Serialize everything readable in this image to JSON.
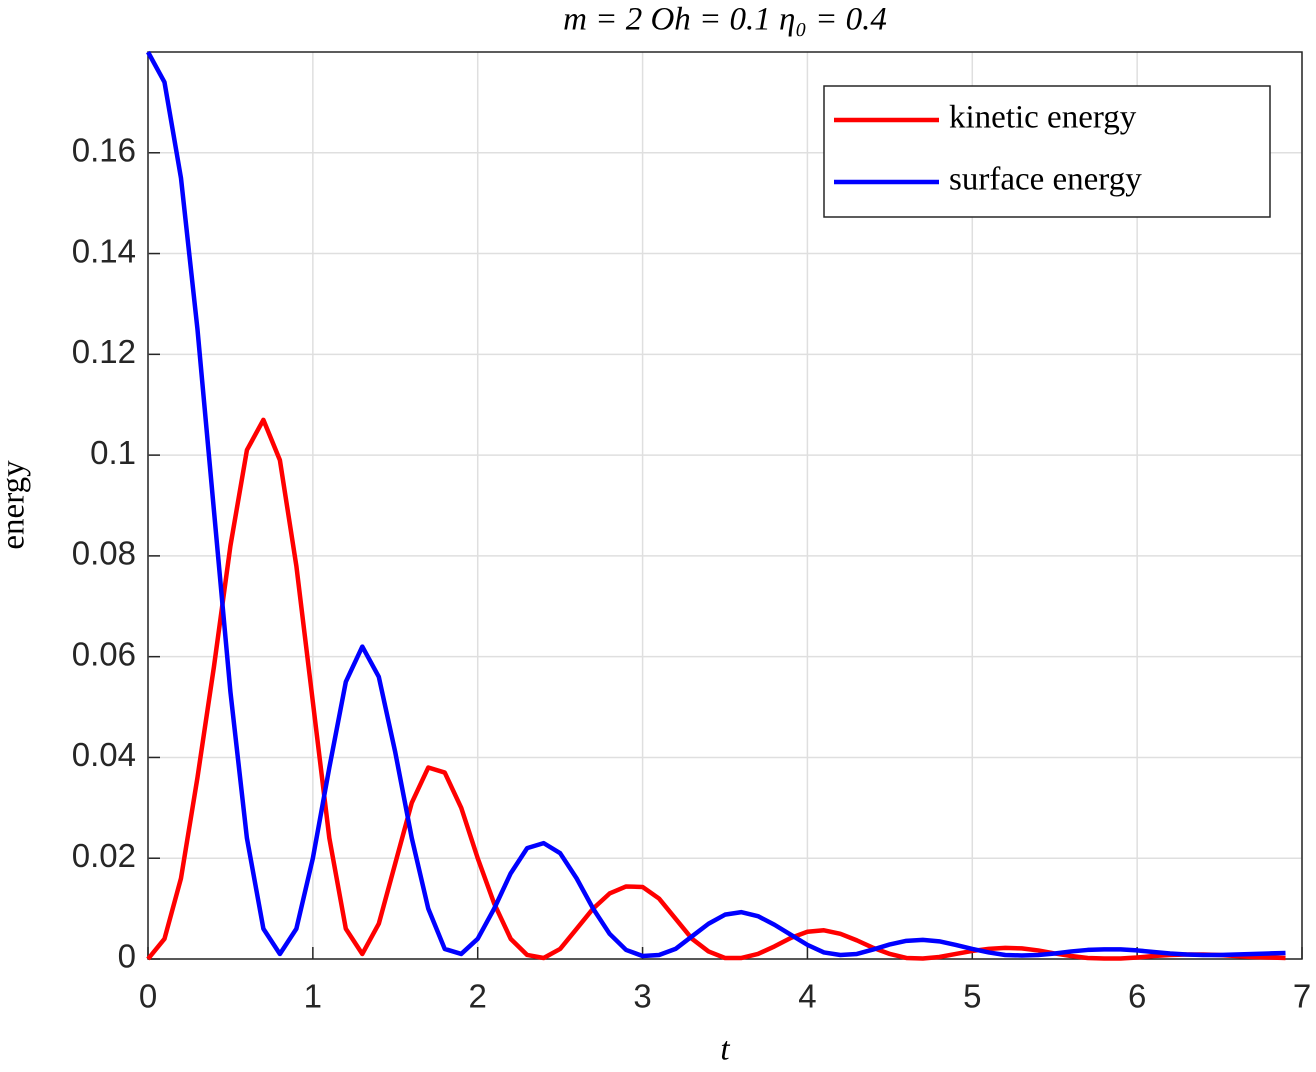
{
  "chart_data": {
    "type": "line",
    "title": "m = 2 Oh = 0.1 η₀ = 0.4",
    "xlabel": "t",
    "ylabel": "energy",
    "x": [
      0,
      0.1,
      0.2,
      0.3,
      0.4,
      0.5,
      0.6,
      0.7,
      0.8,
      0.9,
      1.0,
      1.1,
      1.2,
      1.3,
      1.4,
      1.5,
      1.6,
      1.7,
      1.8,
      1.9,
      2.0,
      2.1,
      2.2,
      2.3,
      2.4,
      2.5,
      2.6,
      2.7,
      2.8,
      2.9,
      3.0,
      3.1,
      3.2,
      3.3,
      3.4,
      3.5,
      3.6,
      3.7,
      3.8,
      3.9,
      4.0,
      4.1,
      4.2,
      4.3,
      4.4,
      4.5,
      4.6,
      4.7,
      4.8,
      4.9,
      5.0,
      5.1,
      5.2,
      5.3,
      5.4,
      5.5,
      5.6,
      5.7,
      5.8,
      5.9,
      6.0,
      6.1,
      6.2,
      6.3,
      6.4,
      6.5,
      6.6,
      6.7,
      6.8,
      6.9
    ],
    "series": [
      {
        "name": "kinetic energy",
        "color": "#ff0000",
        "values": [
          0,
          0.004,
          0.016,
          0.036,
          0.058,
          0.082,
          0.101,
          0.107,
          0.099,
          0.078,
          0.051,
          0.024,
          0.006,
          0.001,
          0.007,
          0.019,
          0.031,
          0.038,
          0.037,
          0.03,
          0.02,
          0.011,
          0.004,
          0.0008,
          0.0002,
          0.002,
          0.006,
          0.01,
          0.013,
          0.0144,
          0.0143,
          0.012,
          0.008,
          0.004,
          0.0015,
          0.0002,
          0.0002,
          0.001,
          0.0025,
          0.0042,
          0.0054,
          0.0057,
          0.005,
          0.0037,
          0.0022,
          0.001,
          0.0002,
          0.0001,
          0.0004,
          0.001,
          0.0016,
          0.002,
          0.0022,
          0.0021,
          0.0017,
          0.0011,
          0.0006,
          0.0002,
          0.0001,
          0.0001,
          0.0003,
          0.0006,
          0.0008,
          0.0009,
          0.0009,
          0.0008,
          0.0006,
          0.0004,
          0.0003,
          0.0002
        ]
      },
      {
        "name": "surface energy",
        "color": "#0000ff",
        "values": [
          0.18,
          0.174,
          0.155,
          0.125,
          0.089,
          0.053,
          0.024,
          0.006,
          0.001,
          0.006,
          0.02,
          0.038,
          0.055,
          0.062,
          0.056,
          0.041,
          0.024,
          0.01,
          0.002,
          0.001,
          0.004,
          0.01,
          0.017,
          0.022,
          0.023,
          0.021,
          0.016,
          0.01,
          0.005,
          0.0018,
          0.0006,
          0.0008,
          0.002,
          0.0045,
          0.007,
          0.0088,
          0.0093,
          0.0085,
          0.0068,
          0.0048,
          0.0028,
          0.0013,
          0.0008,
          0.001,
          0.0019,
          0.0029,
          0.0036,
          0.0038,
          0.0035,
          0.0028,
          0.002,
          0.0013,
          0.0008,
          0.0007,
          0.0008,
          0.0011,
          0.0015,
          0.0018,
          0.0019,
          0.0019,
          0.0017,
          0.0014,
          0.0011,
          0.0009,
          0.0008,
          0.0008,
          0.0009,
          0.001,
          0.0011,
          0.0012
        ]
      }
    ],
    "xlim": [
      0,
      7
    ],
    "xticks": [
      0,
      1,
      2,
      3,
      4,
      5,
      6,
      7
    ],
    "ylim": [
      0,
      0.18
    ],
    "yticks": [
      0,
      0.02,
      0.04,
      0.06,
      0.08,
      0.1,
      0.12,
      0.14,
      0.16
    ],
    "grid": true,
    "legend": "northeast"
  }
}
